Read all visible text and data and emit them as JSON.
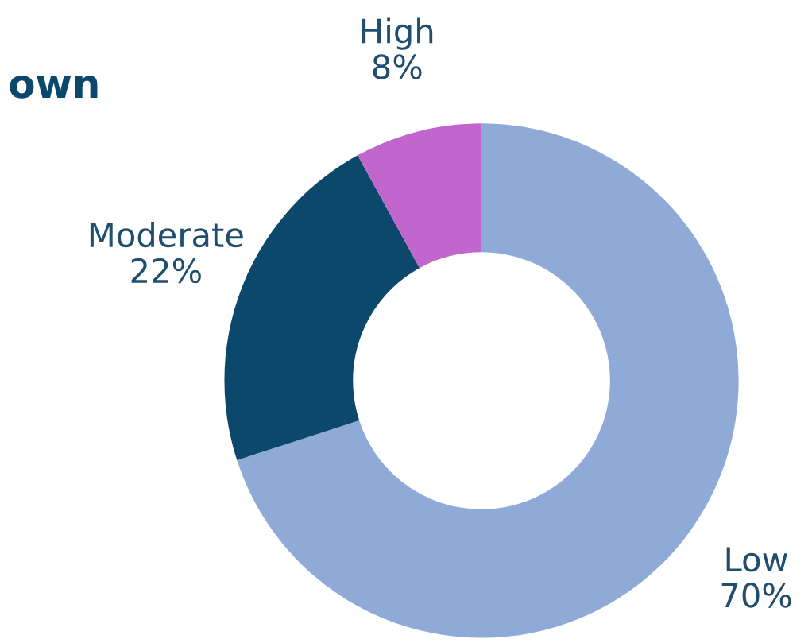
{
  "chart_data": {
    "type": "donut",
    "title": "own",
    "categories": [
      "Low",
      "Moderate",
      "High"
    ],
    "values": [
      70,
      22,
      8
    ],
    "value_labels": [
      "70%",
      "22%",
      "8%"
    ],
    "colors": [
      "#8faad6",
      "#0c486b",
      "#c066cc"
    ],
    "legend": false
  }
}
